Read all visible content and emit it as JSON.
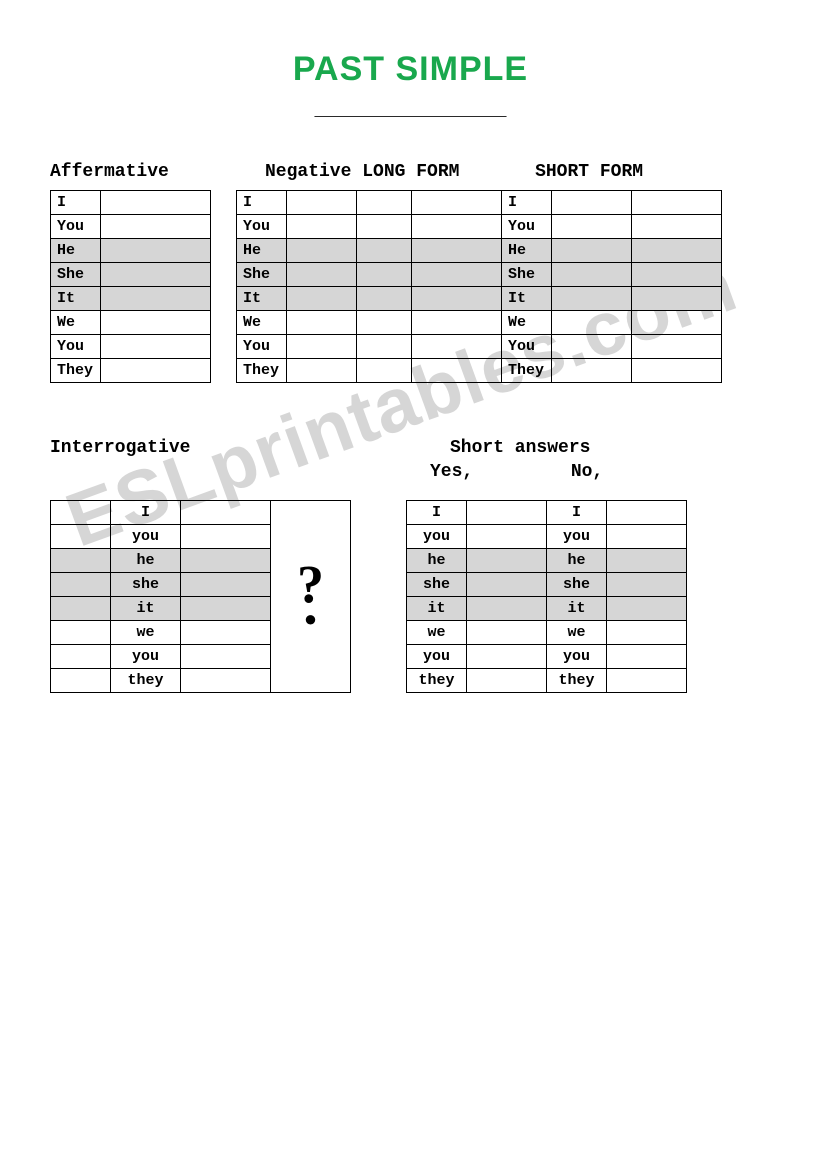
{
  "title": "PAST SIMPLE",
  "underline": "________________",
  "headers": {
    "affirmative": "Affermative",
    "negative_long": "Negative LONG FORM",
    "negative_short": "SHORT FORM",
    "interrogative": "Interrogative",
    "short_answers": "Short answers",
    "yes": "Yes,",
    "no": "No,"
  },
  "pronouns_cap": [
    "I",
    "You",
    "He",
    "She",
    "It",
    "We",
    "You",
    "They"
  ],
  "pronouns_low": [
    "I",
    "you",
    "he",
    "she",
    "it",
    "we",
    "you",
    "they"
  ],
  "shaded_rows": [
    2,
    3,
    4
  ],
  "question_mark": "?",
  "watermark": "ESLprintables.com",
  "colors": {
    "title": "#19a84d",
    "shade": "#d6d6d6",
    "border": "#000000",
    "watermark": "rgba(120,120,120,0.30)",
    "background": "#ffffff"
  },
  "font": {
    "title_family": "Arial",
    "title_size": 34,
    "body_family": "Courier New",
    "body_size": 15,
    "header_size": 18
  }
}
